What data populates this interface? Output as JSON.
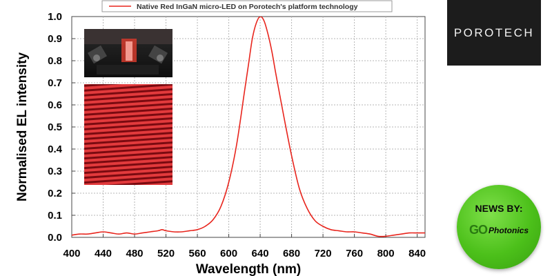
{
  "chart_data": {
    "type": "line",
    "title": "",
    "xlabel": "Wavelength (nm)",
    "ylabel": "Normalised EL intensity",
    "xlim": [
      400,
      850
    ],
    "ylim": [
      0,
      1.0
    ],
    "xticks": [
      400,
      440,
      480,
      520,
      560,
      600,
      640,
      680,
      720,
      760,
      800,
      840
    ],
    "yticks": [
      0.0,
      0.1,
      0.2,
      0.3,
      0.4,
      0.5,
      0.6,
      0.7,
      0.8,
      0.9,
      1.0
    ],
    "ytick_labels": [
      "0.0",
      "0.1",
      "0.2",
      "0.3",
      "0.4",
      "0.5",
      "0.6",
      "0.7",
      "0.8",
      "0.9",
      "1.0"
    ],
    "grid": true,
    "legend_position": "top",
    "series": [
      {
        "name": "Native Red InGaN micro-LED on Porotech's platform technology",
        "color": "#e8241c",
        "x": [
          400,
          410,
          420,
          430,
          440,
          450,
          460,
          470,
          480,
          490,
          500,
          510,
          515,
          520,
          530,
          540,
          550,
          560,
          570,
          580,
          590,
          600,
          610,
          620,
          625,
          630,
          635,
          640,
          645,
          650,
          655,
          660,
          670,
          680,
          690,
          700,
          710,
          720,
          730,
          740,
          750,
          760,
          770,
          780,
          790,
          800,
          810,
          820,
          830,
          840,
          850
        ],
        "y": [
          0.01,
          0.015,
          0.015,
          0.02,
          0.025,
          0.02,
          0.015,
          0.02,
          0.015,
          0.02,
          0.025,
          0.03,
          0.035,
          0.03,
          0.025,
          0.025,
          0.03,
          0.035,
          0.05,
          0.08,
          0.14,
          0.25,
          0.42,
          0.66,
          0.78,
          0.9,
          0.97,
          1.0,
          0.98,
          0.92,
          0.84,
          0.74,
          0.55,
          0.37,
          0.22,
          0.13,
          0.075,
          0.05,
          0.035,
          0.03,
          0.025,
          0.025,
          0.02,
          0.015,
          0.005,
          0.005,
          0.01,
          0.015,
          0.02,
          0.02,
          0.02
        ]
      }
    ]
  },
  "logo": {
    "text": "POROTECH"
  },
  "badge": {
    "title": "NEWS BY:",
    "brand_go": "GO",
    "brand_name": "Photonics"
  },
  "insets": [
    {
      "name": "microscope-photo",
      "colors": [
        "#1a1a1a",
        "#d23a2c"
      ]
    },
    {
      "name": "red-stripe-emission",
      "colors": [
        "#a81018",
        "#e63a3a"
      ]
    }
  ]
}
